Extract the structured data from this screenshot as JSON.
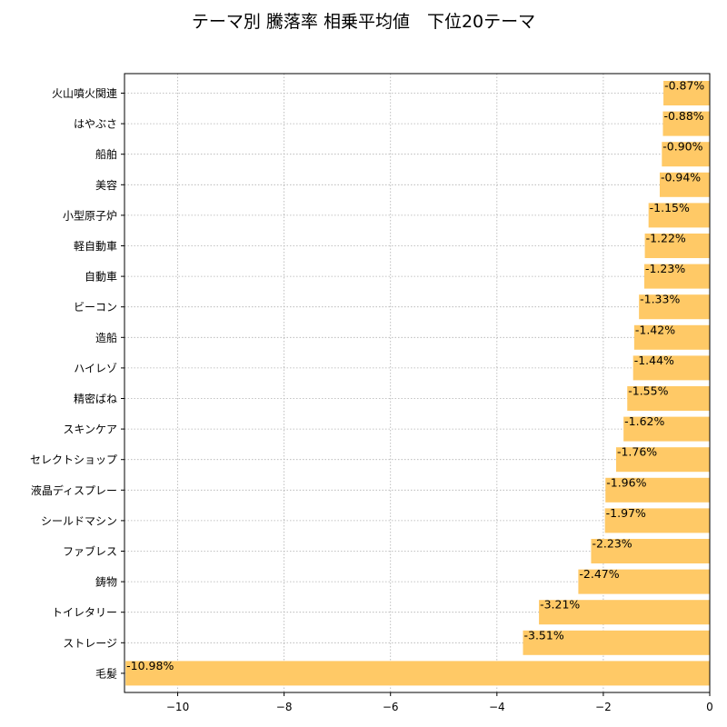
{
  "chart_data": {
    "type": "bar",
    "orientation": "horizontal",
    "title": "テーマ別 騰落率 相乗平均値　下位20テーマ",
    "xlabel": "",
    "ylabel": "",
    "categories": [
      "火山噴火関連",
      "はやぶさ",
      "船舶",
      "美容",
      "小型原子炉",
      "軽自動車",
      "自動車",
      "ビーコン",
      "造船",
      "ハイレゾ",
      "精密ばね",
      "スキンケア",
      "セレクトショップ",
      "液晶ディスプレー",
      "シールドマシン",
      "ファブレス",
      "鋳物",
      "トイレタリー",
      "ストレージ",
      "毛髪"
    ],
    "values": [
      -0.87,
      -0.88,
      -0.9,
      -0.94,
      -1.15,
      -1.22,
      -1.23,
      -1.33,
      -1.42,
      -1.44,
      -1.55,
      -1.62,
      -1.76,
      -1.96,
      -1.97,
      -2.23,
      -2.47,
      -3.21,
      -3.51,
      -10.98
    ],
    "value_labels": [
      "-0.87%",
      "-0.88%",
      "-0.90%",
      "-0.94%",
      "-1.15%",
      "-1.22%",
      "-1.23%",
      "-1.33%",
      "-1.42%",
      "-1.44%",
      "-1.55%",
      "-1.62%",
      "-1.76%",
      "-1.96%",
      "-1.97%",
      "-2.23%",
      "-2.47%",
      "-3.21%",
      "-3.51%",
      "-10.98%"
    ],
    "xlim": [
      -11.0,
      0
    ],
    "xticks": [
      -10,
      -8,
      -6,
      -4,
      -2,
      0
    ],
    "xtick_labels": [
      "−10",
      "−8",
      "−6",
      "−4",
      "−2",
      "0"
    ],
    "grid": true,
    "bar_color": "#ffc966"
  }
}
